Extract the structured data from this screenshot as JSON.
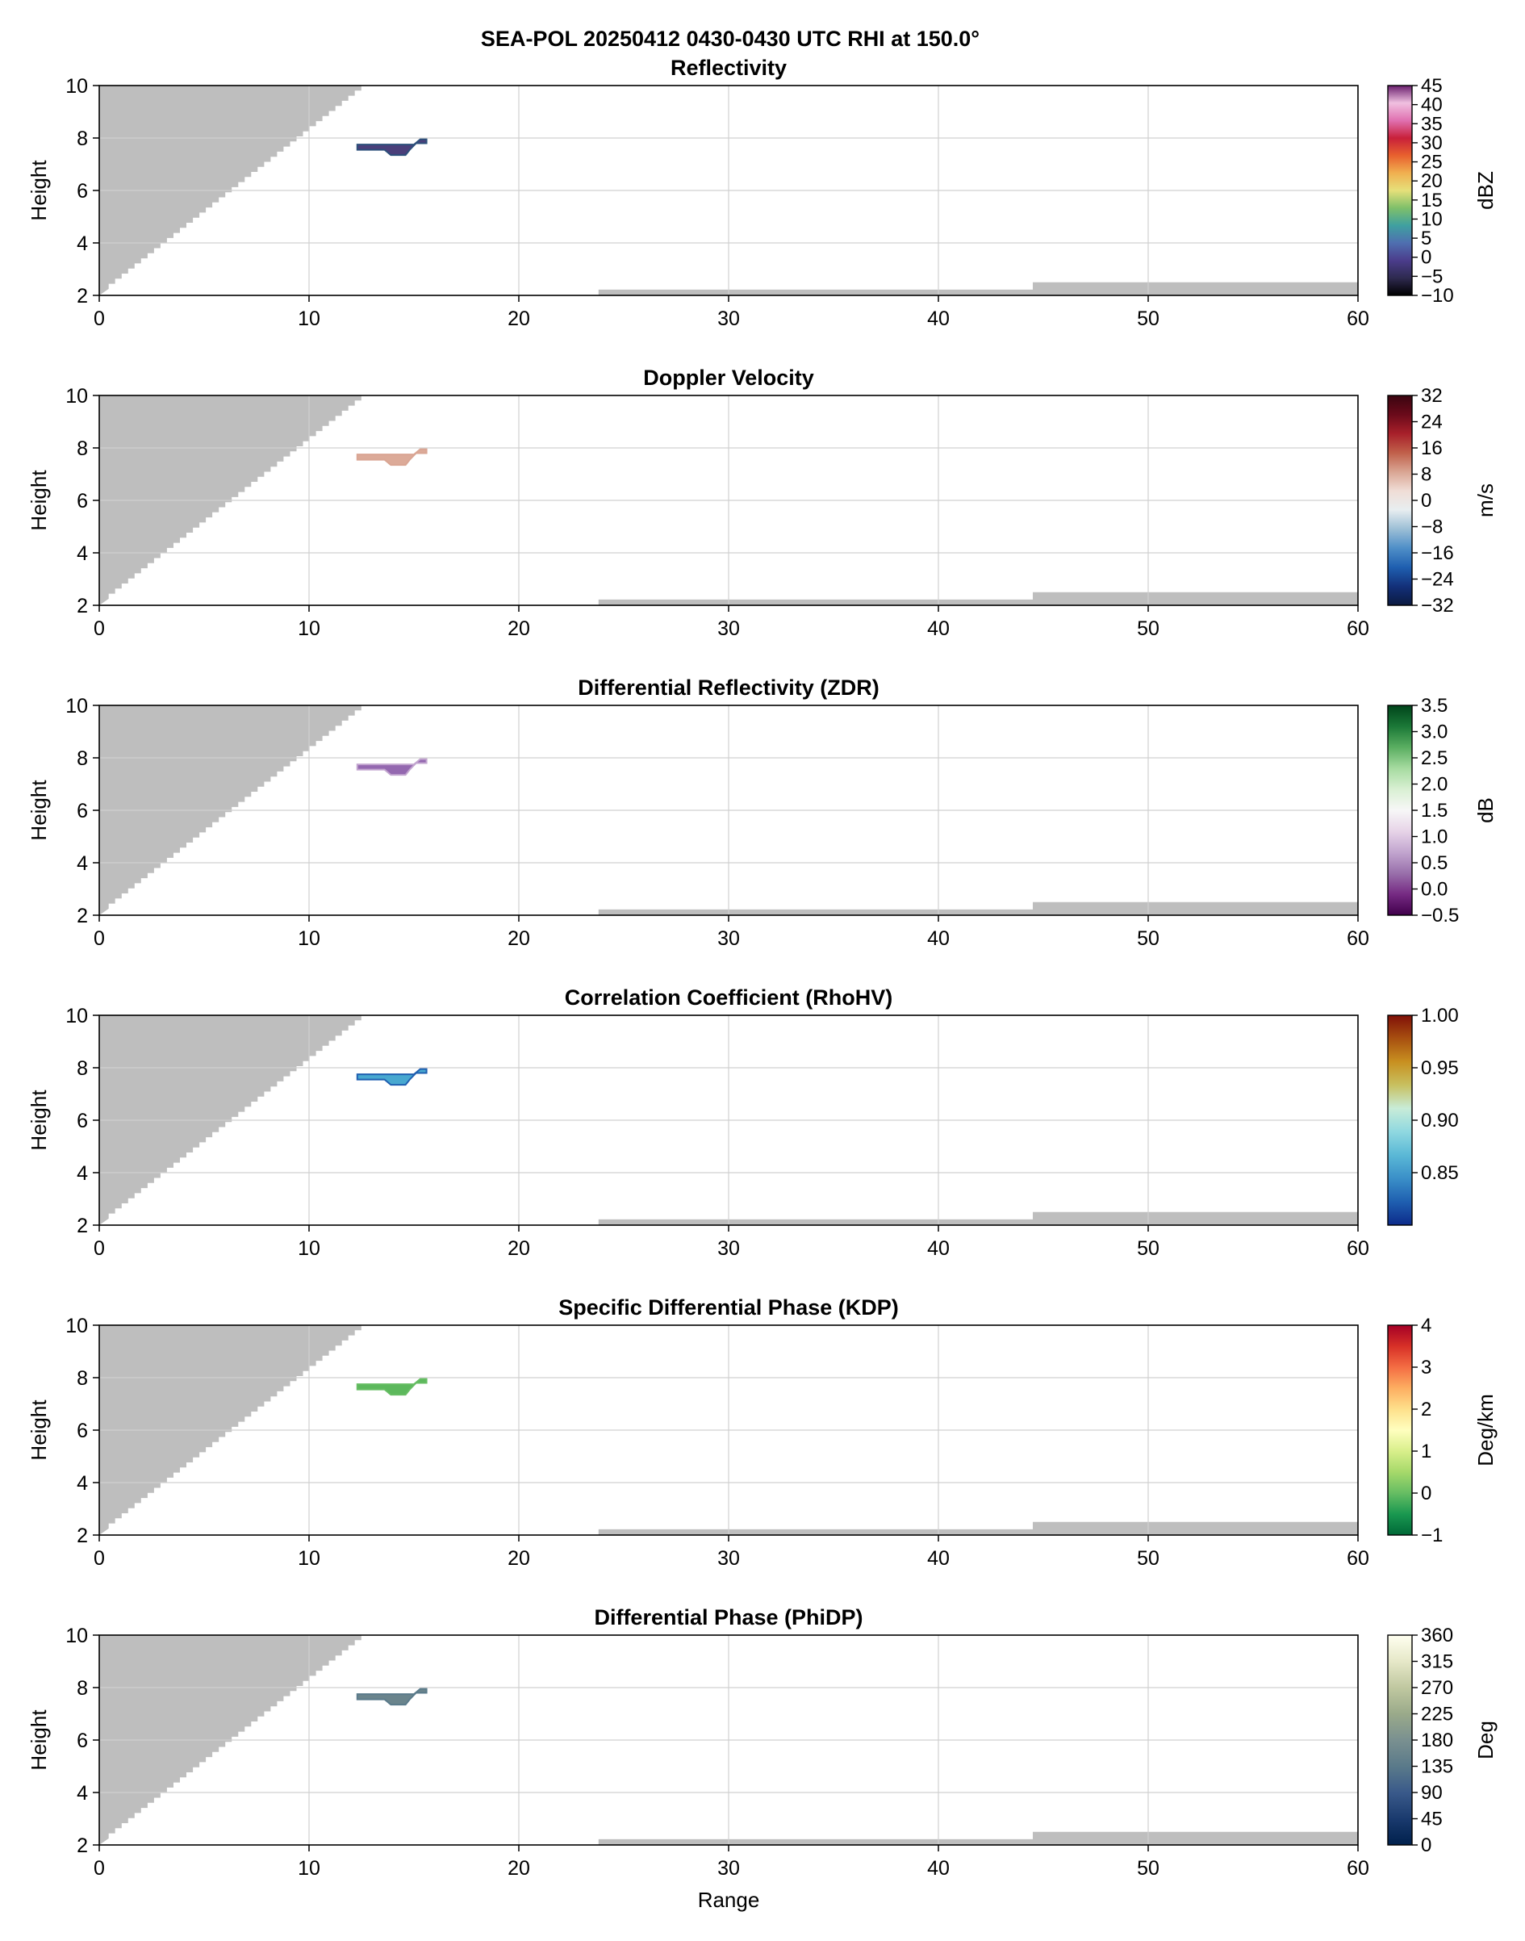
{
  "figure": {
    "suptitle": "SEA-POL 20250412 0430-0430 UTC RHI at 150.0°"
  },
  "chart_data": [
    {
      "type": "heatmap",
      "title": "Reflectivity",
      "xlabel": "",
      "ylabel": "Height",
      "xlim": [
        0,
        60
      ],
      "ylim": [
        2,
        10
      ],
      "x_ticks": [
        "0",
        "10",
        "20",
        "30",
        "40",
        "50",
        "60"
      ],
      "y_ticks": [
        "2",
        "4",
        "6",
        "8",
        "10"
      ],
      "grid": true,
      "colorbar": {
        "label": "dBZ",
        "range": [
          -10,
          45
        ],
        "ticks": [
          "−10",
          "−5",
          "0",
          "5",
          "10",
          "15",
          "20",
          "25",
          "30",
          "35",
          "40",
          "45"
        ],
        "colors": [
          "#000000",
          "#2e2a4f",
          "#4b3d8c",
          "#4f6fb0",
          "#3fa0a0",
          "#7fc06a",
          "#e6e07a",
          "#f0b050",
          "#e8602e",
          "#c8203a",
          "#e070b0",
          "#f0c0e0",
          "#6a1f6e"
        ]
      },
      "echo_color": "#4a3f7a",
      "echo_edge_color": "#2c4f7a"
    },
    {
      "type": "heatmap",
      "title": "Doppler Velocity",
      "xlabel": "",
      "ylabel": "Height",
      "xlim": [
        0,
        60
      ],
      "ylim": [
        2,
        10
      ],
      "x_ticks": [
        "0",
        "10",
        "20",
        "30",
        "40",
        "50",
        "60"
      ],
      "y_ticks": [
        "2",
        "4",
        "6",
        "8",
        "10"
      ],
      "grid": true,
      "colorbar": {
        "label": "m/s",
        "range": [
          -32,
          32
        ],
        "ticks": [
          "−32",
          "−24",
          "−16",
          "−8",
          "0",
          "8",
          "16",
          "24",
          "32"
        ],
        "colors": [
          "#0b1a40",
          "#13307a",
          "#1f5fb0",
          "#4f8fc8",
          "#9cbfd6",
          "#e8eef0",
          "#f0ddd6",
          "#d9a593",
          "#c0604a",
          "#a8202a",
          "#6a0a1a",
          "#3a0510"
        ]
      },
      "echo_color": "#dcaa98",
      "echo_edge_color": "#d9a593"
    },
    {
      "type": "heatmap",
      "title": "Differential Reflectivity (ZDR)",
      "xlabel": "",
      "ylabel": "Height",
      "xlim": [
        0,
        60
      ],
      "ylim": [
        2,
        10
      ],
      "x_ticks": [
        "0",
        "10",
        "20",
        "30",
        "40",
        "50",
        "60"
      ],
      "y_ticks": [
        "2",
        "4",
        "6",
        "8",
        "10"
      ],
      "grid": true,
      "colorbar": {
        "label": "dB",
        "range": [
          -0.5,
          3.5
        ],
        "ticks": [
          "−0.5",
          "0.0",
          "0.5",
          "1.0",
          "1.5",
          "2.0",
          "2.5",
          "3.0",
          "3.5"
        ],
        "colors": [
          "#40004b",
          "#762a83",
          "#9970ab",
          "#c2a5cf",
          "#e7d4e8",
          "#f7f7f7",
          "#d9f0d3",
          "#a6dba0",
          "#5aae61",
          "#1b7837",
          "#00441b"
        ]
      },
      "echo_color": "#9468b0",
      "echo_edge_color": "#c2a5cf"
    },
    {
      "type": "heatmap",
      "title": "Correlation Coefficient (RhoHV)",
      "xlabel": "",
      "ylabel": "Height",
      "xlim": [
        0,
        60
      ],
      "ylim": [
        2,
        10
      ],
      "x_ticks": [
        "0",
        "10",
        "20",
        "30",
        "40",
        "50",
        "60"
      ],
      "y_ticks": [
        "2",
        "4",
        "6",
        "8",
        "10"
      ],
      "grid": true,
      "colorbar": {
        "label": "",
        "range": [
          0.8,
          1.0
        ],
        "ticks": [
          "0.85",
          "0.90",
          "0.95",
          "1.00"
        ],
        "tick_values": [
          0.85,
          0.9,
          0.95,
          1.0
        ],
        "colors": [
          "#0c2a8a",
          "#1f5fb0",
          "#3a8fc8",
          "#5ab8d6",
          "#8fd8e0",
          "#c8ecd8",
          "#c8c060",
          "#c89020",
          "#a85010",
          "#801008"
        ]
      },
      "echo_color": "#48a8d0",
      "echo_edge_color": "#1f5fb0"
    },
    {
      "type": "heatmap",
      "title": "Specific Differential Phase (KDP)",
      "xlabel": "",
      "ylabel": "Height",
      "xlim": [
        0,
        60
      ],
      "ylim": [
        2,
        10
      ],
      "x_ticks": [
        "0",
        "10",
        "20",
        "30",
        "40",
        "50",
        "60"
      ],
      "y_ticks": [
        "2",
        "4",
        "6",
        "8",
        "10"
      ],
      "grid": true,
      "colorbar": {
        "label": "Deg/km",
        "range": [
          -1,
          4
        ],
        "ticks": [
          "−1",
          "0",
          "1",
          "2",
          "3",
          "4"
        ],
        "colors": [
          "#006837",
          "#1a9850",
          "#66bd63",
          "#a6d96a",
          "#d9ef8b",
          "#ffffbf",
          "#fee08b",
          "#fdae61",
          "#f46d43",
          "#d73027",
          "#a50026"
        ]
      },
      "echo_color": "#5cb85c",
      "echo_edge_color": "#66bd63"
    },
    {
      "type": "heatmap",
      "title": "Differential Phase (PhiDP)",
      "xlabel": "Range",
      "ylabel": "Height",
      "xlim": [
        0,
        60
      ],
      "ylim": [
        2,
        10
      ],
      "x_ticks": [
        "0",
        "10",
        "20",
        "30",
        "40",
        "50",
        "60"
      ],
      "y_ticks": [
        "2",
        "4",
        "6",
        "8",
        "10"
      ],
      "grid": true,
      "colorbar": {
        "label": "Deg",
        "range": [
          0,
          360
        ],
        "ticks": [
          "0",
          "45",
          "90",
          "135",
          "180",
          "225",
          "270",
          "315",
          "360"
        ],
        "colors": [
          "#00204c",
          "#1a3a6e",
          "#3a5a8a",
          "#5a7a8a",
          "#7a9090",
          "#9aaa8a",
          "#c0c8a0",
          "#e6e8c8",
          "#fffff0"
        ]
      },
      "echo_color": "#6a848c",
      "echo_edge_color": "#5a7a8a"
    }
  ]
}
